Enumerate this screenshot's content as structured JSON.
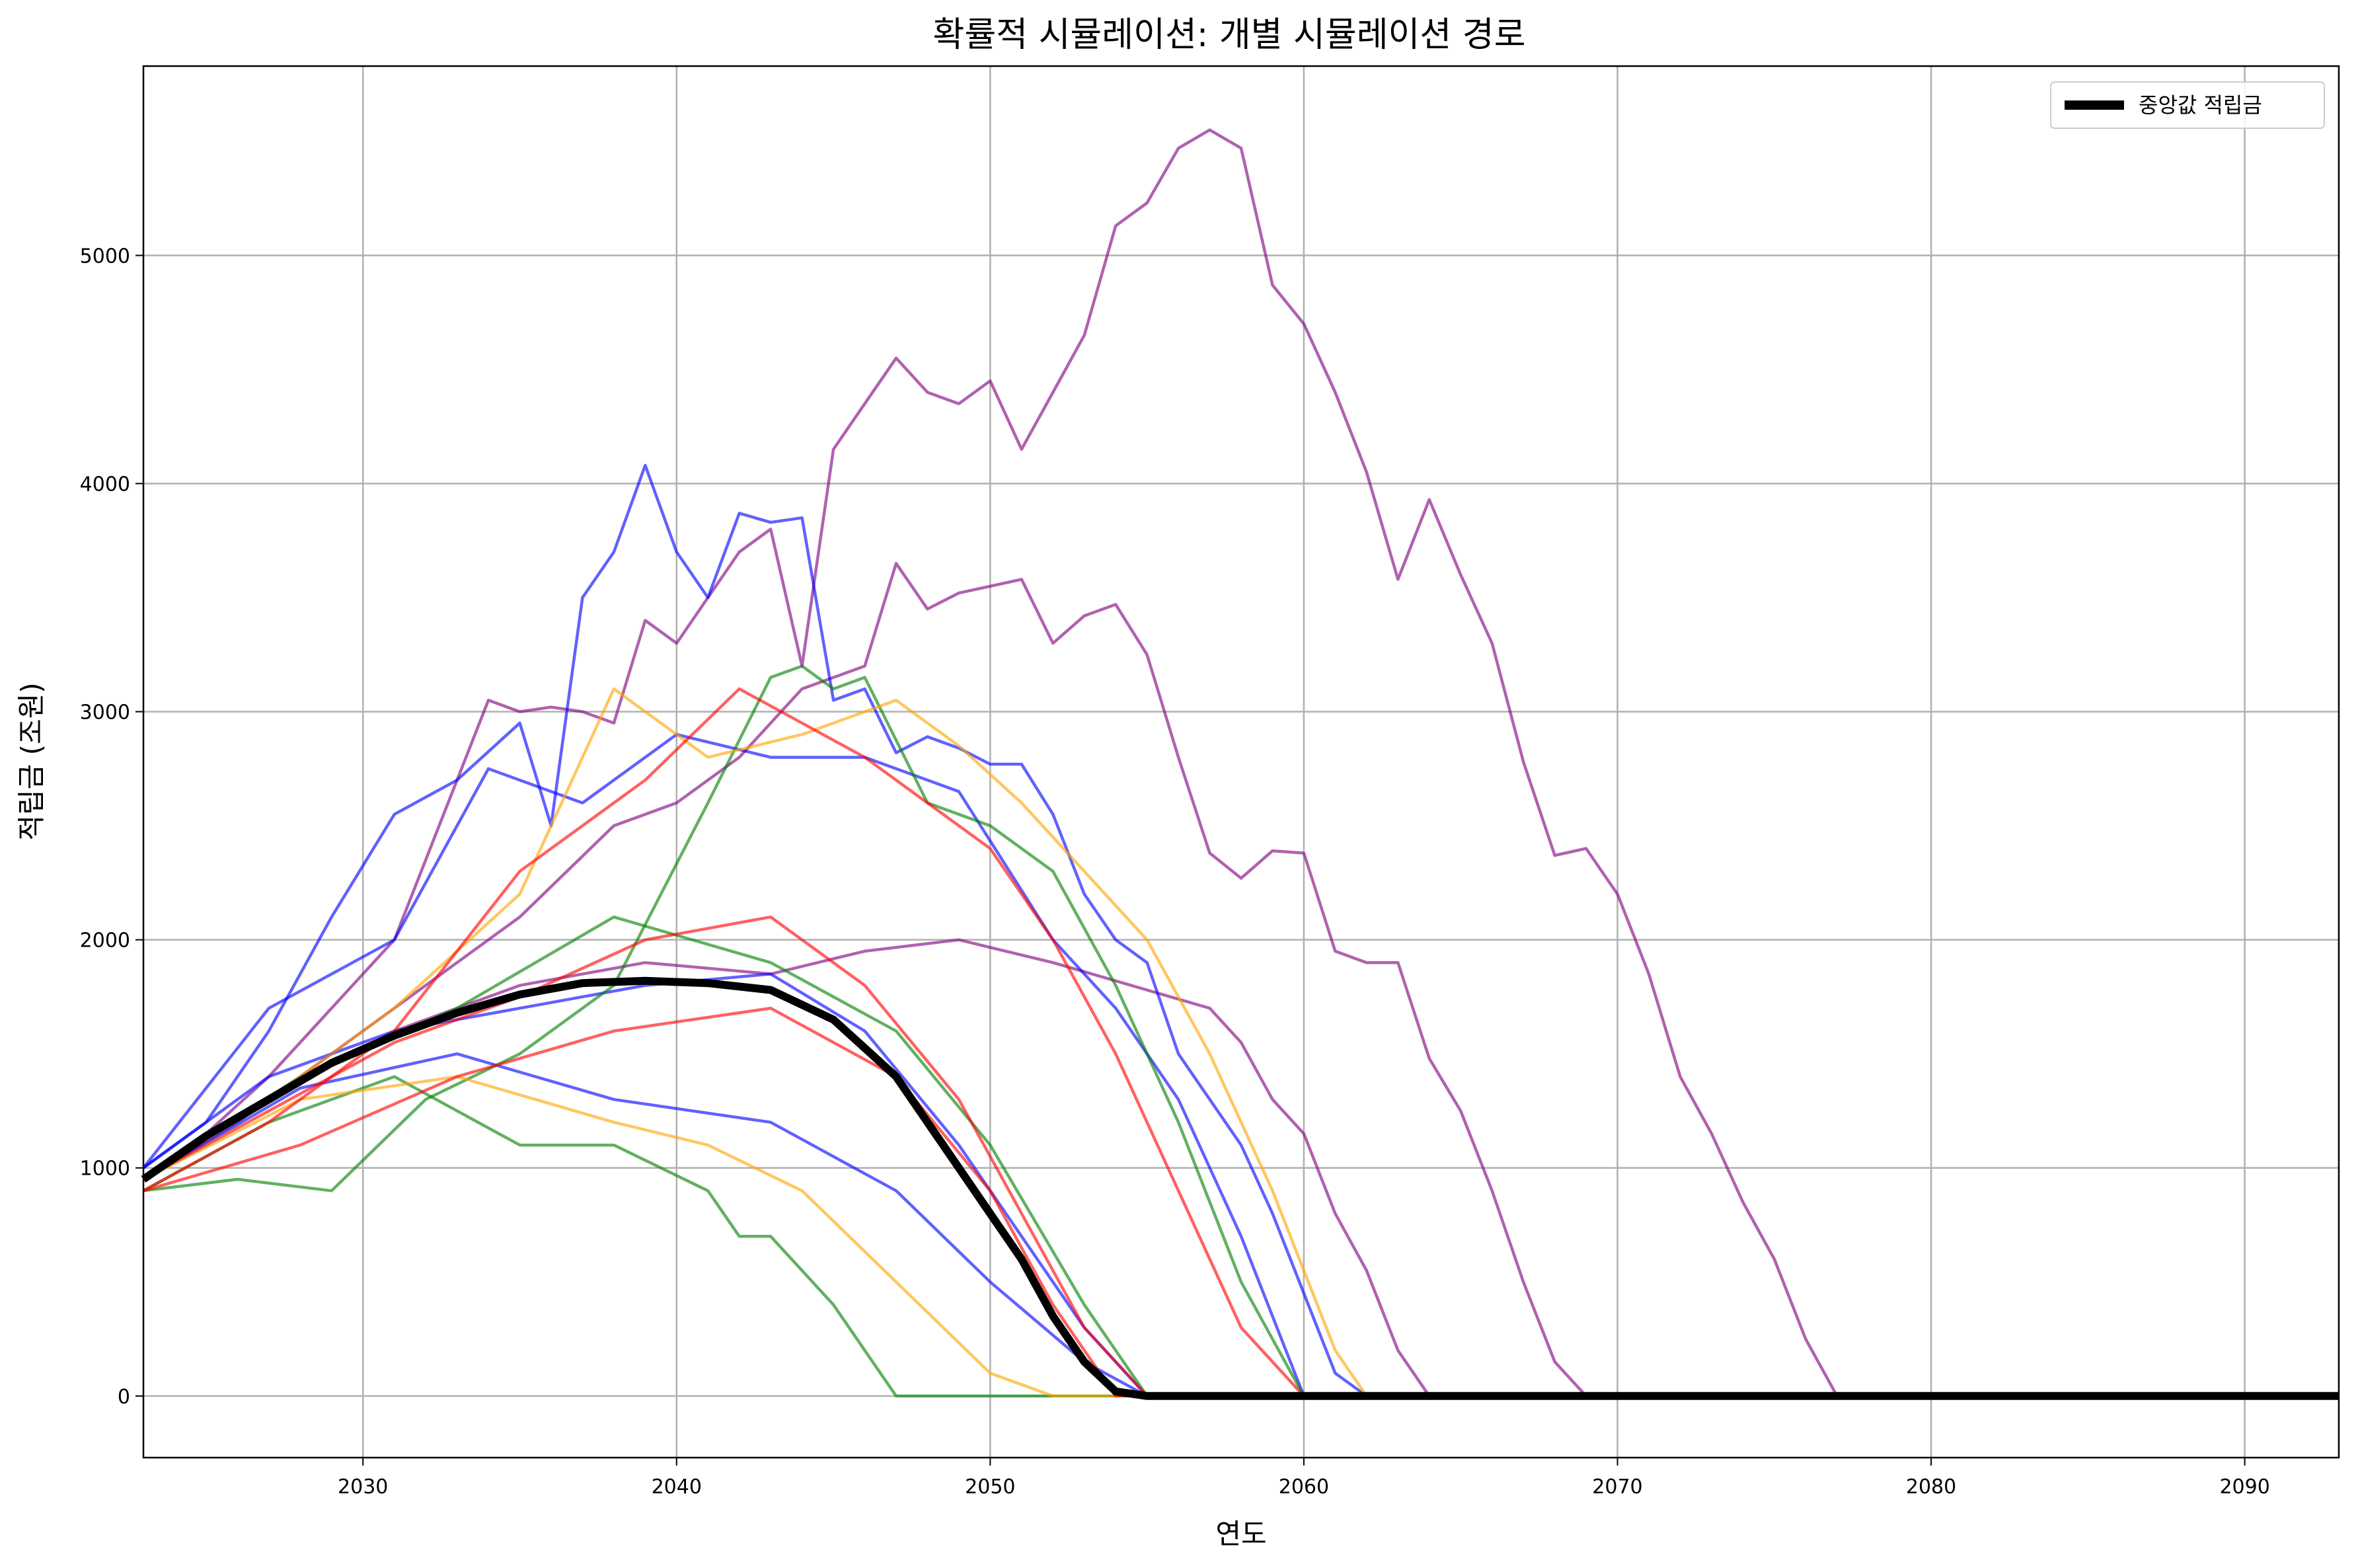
{
  "chart_data": {
    "type": "line",
    "title": "확률적 시뮬레이션: 개별 시뮬레이션 경로",
    "xlabel": "연도",
    "ylabel": "적립금 (조원)",
    "xlim": [
      2023,
      2093
    ],
    "ylim": [
      -270,
      5830
    ],
    "xticks": [
      2030,
      2040,
      2050,
      2060,
      2070,
      2080,
      2090
    ],
    "yticks": [
      0,
      1000,
      2000,
      3000,
      4000,
      5000
    ],
    "grid": true,
    "legend": {
      "placement": "top-right",
      "entries": [
        "중앙값 적립금"
      ]
    },
    "colors": {
      "blue": "#0000ff",
      "green": "#008000",
      "orange": "#ffa500",
      "red": "#ff0000",
      "purple": "#800080",
      "median": "#000000"
    },
    "series": [
      {
        "name": "중앙값 적립금",
        "color": "#000000",
        "median": true,
        "x": [
          2023,
          2025,
          2027,
          2029,
          2031,
          2033,
          2035,
          2037,
          2039,
          2041,
          2043,
          2045,
          2047,
          2048,
          2049,
          2050,
          2051,
          2052,
          2053,
          2054,
          2055,
          2093
        ],
        "y": [
          950,
          1140,
          1300,
          1460,
          1580,
          1680,
          1760,
          1810,
          1820,
          1810,
          1780,
          1650,
          1400,
          1200,
          1000,
          800,
          600,
          350,
          150,
          20,
          0,
          0
        ]
      },
      {
        "color": "#800080",
        "x": [
          2023,
          2025,
          2027,
          2029,
          2031,
          2033,
          2034,
          2035,
          2036,
          2037,
          2038,
          2039,
          2040,
          2041,
          2042,
          2043,
          2044,
          2045,
          2046,
          2047,
          2048,
          2049,
          2050,
          2051,
          2052,
          2053,
          2054,
          2055,
          2056,
          2057,
          2058,
          2059,
          2060,
          2061,
          2062,
          2063,
          2064,
          2065,
          2066,
          2067,
          2068,
          2069,
          2070,
          2071,
          2072,
          2073,
          2074,
          2075,
          2076,
          2077,
          2093
        ],
        "y": [
          950,
          1150,
          1400,
          1700,
          2000,
          2700,
          3050,
          3000,
          3020,
          3000,
          2950,
          3400,
          3300,
          3500,
          3700,
          3800,
          3200,
          4150,
          4350,
          4550,
          4400,
          4350,
          4450,
          4150,
          4400,
          4650,
          5130,
          5230,
          5470,
          5550,
          5470,
          4870,
          4700,
          4400,
          4050,
          3580,
          3930,
          3600,
          3300,
          2780,
          2370,
          2400,
          2200,
          1850,
          1400,
          1150,
          850,
          600,
          250,
          0,
          0
        ]
      },
      {
        "color": "#800080",
        "x": [
          2023,
          2026,
          2029,
          2032,
          2035,
          2038,
          2040,
          2042,
          2044,
          2046,
          2047,
          2048,
          2049,
          2050,
          2051,
          2052,
          2053,
          2054,
          2055,
          2056,
          2057,
          2058,
          2059,
          2060,
          2061,
          2062,
          2063,
          2064,
          2065,
          2066,
          2067,
          2068,
          2069,
          2093
        ],
        "y": [
          950,
          1200,
          1500,
          1800,
          2100,
          2500,
          2600,
          2800,
          3100,
          3200,
          3650,
          3450,
          3520,
          3550,
          3580,
          3300,
          3420,
          3470,
          3250,
          2800,
          2380,
          2270,
          2390,
          2380,
          1950,
          1900,
          1900,
          1480,
          1250,
          900,
          500,
          150,
          0,
          0
        ]
      },
      {
        "color": "#800080",
        "x": [
          2023,
          2027,
          2031,
          2035,
          2039,
          2043,
          2046,
          2049,
          2052,
          2055,
          2057,
          2058,
          2059,
          2060,
          2061,
          2062,
          2063,
          2064,
          2093
        ],
        "y": [
          950,
          1300,
          1600,
          1800,
          1900,
          1850,
          1950,
          2000,
          1900,
          1780,
          1700,
          1550,
          1300,
          1150,
          800,
          550,
          200,
          0,
          0
        ]
      },
      {
        "color": "#0000ff",
        "x": [
          2023,
          2025,
          2027,
          2029,
          2031,
          2033,
          2035,
          2036,
          2037,
          2038,
          2039,
          2040,
          2041,
          2042,
          2043,
          2044,
          2045,
          2046,
          2047,
          2048,
          2049,
          2050,
          2051,
          2052,
          2053,
          2054,
          2055,
          2056,
          2057,
          2058,
          2059,
          2060,
          2061,
          2062,
          2093
        ],
        "y": [
          1000,
          1200,
          1600,
          2100,
          2550,
          2700,
          2950,
          2500,
          3500,
          3700,
          4080,
          3700,
          3500,
          3870,
          3830,
          3850,
          3050,
          3100,
          2820,
          2890,
          2840,
          2770,
          2770,
          2550,
          2200,
          2000,
          1900,
          1500,
          1300,
          1100,
          800,
          450,
          100,
          0,
          0
        ]
      },
      {
        "color": "#0000ff",
        "x": [
          2023,
          2027,
          2031,
          2034,
          2037,
          2040,
          2043,
          2046,
          2049,
          2052,
          2054,
          2056,
          2058,
          2060,
          2093
        ],
        "y": [
          1000,
          1700,
          2000,
          2750,
          2600,
          2900,
          2800,
          2800,
          2650,
          2000,
          1700,
          1300,
          700,
          0,
          0
        ]
      },
      {
        "color": "#0000ff",
        "x": [
          2023,
          2027,
          2031,
          2035,
          2039,
          2043,
          2046,
          2049,
          2051,
          2053,
          2055,
          2093
        ],
        "y": [
          1000,
          1400,
          1600,
          1700,
          1800,
          1850,
          1600,
          1100,
          700,
          300,
          0,
          0
        ]
      },
      {
        "color": "#0000ff",
        "x": [
          2023,
          2028,
          2033,
          2038,
          2043,
          2047,
          2050,
          2053,
          2055,
          2093
        ],
        "y": [
          950,
          1350,
          1500,
          1300,
          1200,
          900,
          500,
          150,
          0,
          0
        ]
      },
      {
        "color": "#008000",
        "x": [
          2023,
          2026,
          2029,
          2032,
          2035,
          2038,
          2041,
          2043,
          2044,
          2045,
          2046,
          2048,
          2050,
          2052,
          2054,
          2056,
          2058,
          2060,
          2093
        ],
        "y": [
          900,
          950,
          900,
          1300,
          1500,
          1800,
          2600,
          3150,
          3200,
          3100,
          3150,
          2600,
          2500,
          2300,
          1800,
          1200,
          500,
          0,
          0
        ]
      },
      {
        "color": "#008000",
        "x": [
          2023,
          2027,
          2031,
          2035,
          2038,
          2041,
          2042,
          2043,
          2044,
          2045,
          2046,
          2047,
          2048,
          2093
        ],
        "y": [
          900,
          1200,
          1400,
          1100,
          1100,
          900,
          700,
          700,
          550,
          400,
          200,
          0,
          0,
          0
        ]
      },
      {
        "color": "#008000",
        "x": [
          2023,
          2028,
          2033,
          2038,
          2043,
          2047,
          2050,
          2053,
          2055,
          2093
        ],
        "y": [
          950,
          1400,
          1700,
          2100,
          1900,
          1600,
          1100,
          400,
          0,
          0
        ]
      },
      {
        "color": "#ffa500",
        "x": [
          2023,
          2027,
          2031,
          2035,
          2038,
          2041,
          2044,
          2046,
          2047,
          2049,
          2051,
          2053,
          2055,
          2057,
          2059,
          2061,
          2062,
          2093
        ],
        "y": [
          950,
          1300,
          1700,
          2200,
          3100,
          2800,
          2900,
          3000,
          3050,
          2850,
          2600,
          2300,
          2000,
          1500,
          900,
          200,
          0,
          0
        ]
      },
      {
        "color": "#ffa500",
        "x": [
          2023,
          2028,
          2033,
          2038,
          2041,
          2044,
          2047,
          2050,
          2052,
          2093
        ],
        "y": [
          950,
          1300,
          1400,
          1200,
          1100,
          900,
          500,
          100,
          0,
          0
        ]
      },
      {
        "color": "#ff0000",
        "x": [
          2023,
          2027,
          2031,
          2035,
          2039,
          2042,
          2044,
          2046,
          2048,
          2050,
          2052,
          2054,
          2056,
          2058,
          2060,
          2093
        ],
        "y": [
          900,
          1200,
          1600,
          2300,
          2700,
          3100,
          2950,
          2800,
          2600,
          2400,
          2000,
          1500,
          900,
          300,
          0,
          0
        ]
      },
      {
        "color": "#ff0000",
        "x": [
          2023,
          2028,
          2033,
          2038,
          2043,
          2047,
          2050,
          2052,
          2054,
          2093
        ],
        "y": [
          900,
          1100,
          1400,
          1600,
          1700,
          1400,
          900,
          400,
          0,
          0
        ]
      },
      {
        "color": "#ff0000",
        "x": [
          2023,
          2027,
          2031,
          2035,
          2039,
          2043,
          2046,
          2049,
          2051,
          2053,
          2055,
          2093
        ],
        "y": [
          950,
          1250,
          1550,
          1750,
          2000,
          2100,
          1800,
          1300,
          800,
          300,
          0,
          0
        ]
      }
    ]
  }
}
